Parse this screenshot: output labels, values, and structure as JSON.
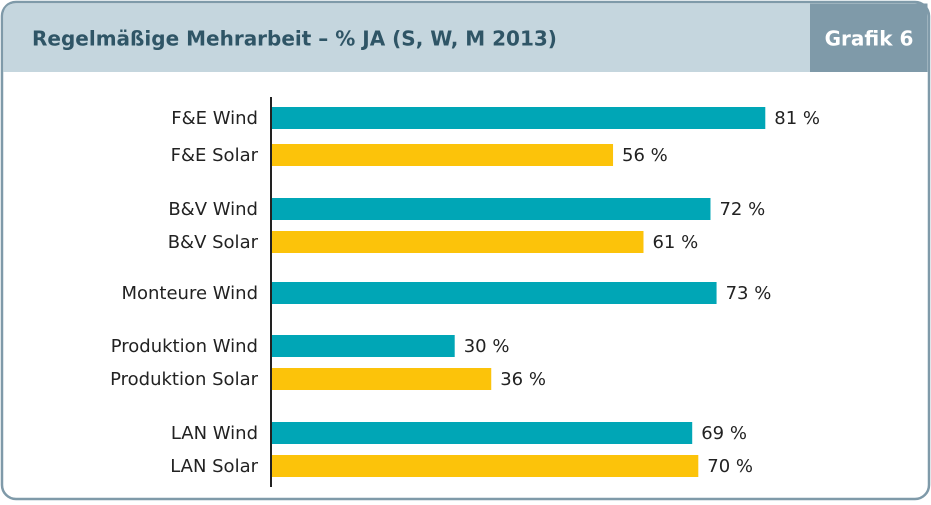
{
  "chart_data": {
    "type": "bar",
    "orientation": "horizontal",
    "title": "Regelmäßige Mehrarbeit – % JA (S, W, M 2013)",
    "badge": "Grafik 6",
    "categories": [
      "F&E Wind",
      "F&E Solar",
      "B&V Wind",
      "B&V Solar",
      "Monteure Wind",
      "Produktion Wind",
      "Produktion Solar",
      "LAN Wind",
      "LAN Solar"
    ],
    "values": [
      81,
      56,
      72,
      61,
      73,
      30,
      36,
      69,
      70
    ],
    "value_labels": [
      "81 %",
      "56 %",
      "72 %",
      "61 %",
      "73 %",
      "30 %",
      "36 %",
      "69 %",
      "70 %"
    ],
    "colors": [
      "#00a6b6",
      "#fcc30a",
      "#00a6b6",
      "#fcc30a",
      "#00a6b6",
      "#00a6b6",
      "#fcc30a",
      "#00a6b6",
      "#fcc30a"
    ]
  }
}
